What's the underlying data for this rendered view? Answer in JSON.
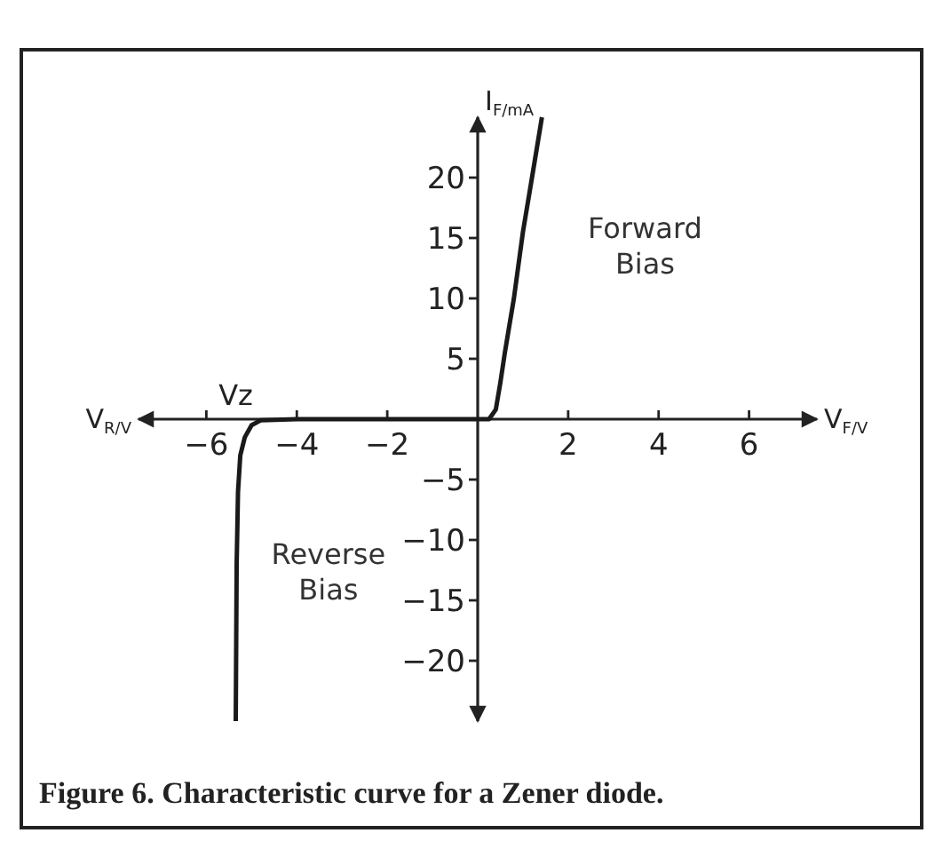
{
  "chart_data": {
    "type": "line",
    "title": "Figure 6. Characteristic curve for a Zener diode.",
    "xlabel": "V$_{F/V}$",
    "ylabel": "I$_{F/mA}$",
    "x": [
      -5.35,
      -5.33,
      -5.3,
      -5.25,
      -5.15,
      -5.0,
      -4.8,
      -4.0,
      -2.0,
      0.0,
      0.25,
      0.4,
      0.5,
      0.6,
      0.8,
      1.0,
      1.2,
      1.42
    ],
    "series": [
      {
        "color": "#1a1a1a",
        "values": [
          -25,
          -12,
          -6,
          -3,
          -1.5,
          -0.5,
          -0.1,
          0,
          0,
          0,
          0,
          0.8,
          3,
          5.5,
          10,
          15.5,
          20,
          25
        ]
      }
    ],
    "xlim": [
      -7.5,
      7.5
    ],
    "ylim": [
      -25,
      25
    ],
    "xticks": [
      -6,
      -4,
      -2,
      2,
      4,
      6
    ],
    "yticks": [
      -20,
      -15,
      -10,
      -5,
      5,
      10,
      15,
      20
    ],
    "annotations": [
      "Vz",
      "V$_{R/V}$",
      "Forward Bias",
      "Reverse Bias"
    ],
    "grid": false,
    "marker": "none",
    "line_style": "solid"
  }
}
